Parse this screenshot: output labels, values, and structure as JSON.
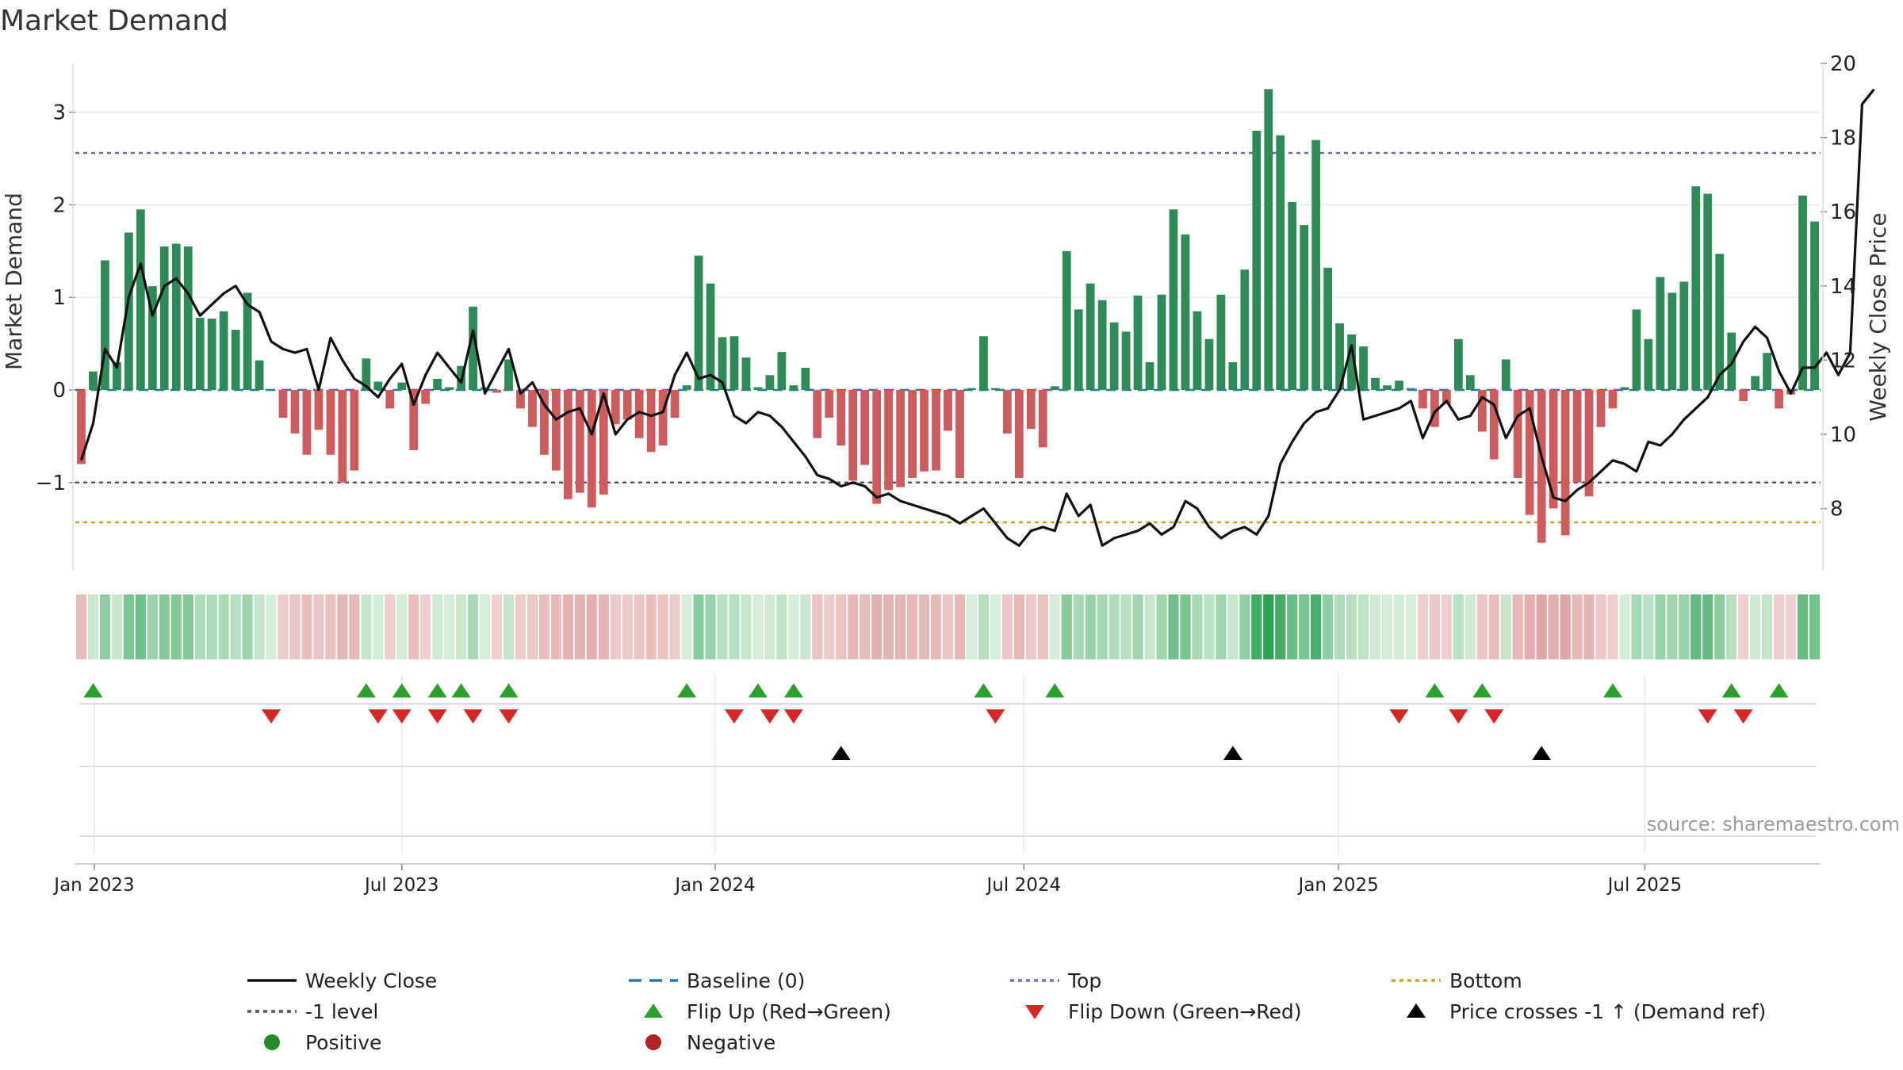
{
  "title": "Market Demand",
  "source": "source: sharemaestro.com",
  "chart_data": {
    "type": "bar",
    "title": "Market Demand",
    "ylabel_left": "Market Demand",
    "ylabel_right": "Weekly Close Price",
    "ylim_left": [
      -2.0,
      3.5
    ],
    "ylim_right": [
      6.5,
      20.0
    ],
    "left_ticks": [
      {
        "v": 3,
        "label": "3"
      },
      {
        "v": 2,
        "label": "2"
      },
      {
        "v": 1,
        "label": "1"
      },
      {
        "v": 0,
        "label": "0"
      },
      {
        "v": -1,
        "label": "−1"
      }
    ],
    "right_ticks": [
      {
        "v": 20,
        "label": "20"
      },
      {
        "v": 18,
        "label": "18"
      },
      {
        "v": 16,
        "label": "16"
      },
      {
        "v": 14,
        "label": "14"
      },
      {
        "v": 12,
        "label": "12"
      },
      {
        "v": 10,
        "label": "10"
      },
      {
        "v": 8,
        "label": "8"
      }
    ],
    "x_start": "2022-12-19",
    "x_week_count": 145,
    "x_ticks": [
      {
        "week": 1.6,
        "label": "Jan 2023"
      },
      {
        "week": 27.5,
        "label": "Jul 2023"
      },
      {
        "week": 53.9,
        "label": "Jan 2024"
      },
      {
        "week": 79.9,
        "label": "Jul 2024"
      },
      {
        "week": 106.4,
        "label": "Jan 2025"
      },
      {
        "week": 132.2,
        "label": "Jul 2025"
      }
    ],
    "reference_lines": {
      "baseline": 0,
      "top": 2.56,
      "minus_one": -1,
      "bottom": -1.43
    },
    "demand": [
      -0.8,
      0.2,
      1.4,
      0.3,
      1.7,
      1.95,
      1.12,
      1.55,
      1.58,
      1.55,
      0.78,
      0.77,
      0.85,
      0.65,
      1.05,
      0.32,
      0,
      -0.3,
      -0.47,
      -0.7,
      -0.43,
      -0.7,
      -1.0,
      -0.87,
      0.34,
      0.09,
      -0.2,
      0.08,
      -0.65,
      -0.15,
      0.12,
      0.03,
      0.26,
      0.9,
      0.03,
      -0.03,
      0.33,
      -0.2,
      -0.4,
      -0.7,
      -0.87,
      -1.18,
      -1.11,
      -1.27,
      -1.13,
      -0.37,
      -0.32,
      -0.52,
      -0.67,
      -0.6,
      -0.3,
      0.05,
      1.45,
      1.15,
      0.57,
      0.58,
      0.35,
      0.03,
      0.16,
      0.41,
      0.05,
      0.24,
      -0.52,
      -0.3,
      -0.6,
      -0.98,
      -0.81,
      -1.23,
      -1.08,
      -1.05,
      -0.95,
      -0.88,
      -0.87,
      -0.44,
      -0.95,
      0.02,
      0.58,
      0.02,
      -0.47,
      -0.95,
      -0.42,
      -0.62,
      0.04,
      1.5,
      0.87,
      1.15,
      0.97,
      0.73,
      0.63,
      1.02,
      0.3,
      1.03,
      1.95,
      1.68,
      0.85,
      0.55,
      1.03,
      0.3,
      1.3,
      2.8,
      3.25,
      2.75,
      2.03,
      1.78,
      2.7,
      1.32,
      0.72,
      0.6,
      0.47,
      0.13,
      0.05,
      0.1,
      0.02,
      -0.2,
      -0.4,
      -0.15,
      0.55,
      0.16,
      -0.45,
      -0.75,
      0.33,
      -0.95,
      -1.35,
      -1.65,
      -1.28,
      -1.57,
      -1.0,
      -1.15,
      -0.4,
      -0.2,
      0.03,
      0.87,
      0.55,
      1.22,
      1.05,
      1.17,
      2.2,
      2.12,
      1.47,
      0.62,
      -0.12,
      0.15,
      0.4,
      -0.2,
      -0.05,
      2.1,
      1.82
    ],
    "price": [
      9.3,
      10.3,
      12.3,
      11.8,
      13.7,
      14.6,
      13.2,
      14.0,
      14.2,
      13.8,
      13.2,
      13.5,
      13.8,
      14.0,
      13.5,
      13.3,
      12.5,
      12.3,
      12.2,
      12.3,
      11.2,
      12.6,
      12.0,
      11.5,
      11.3,
      11.0,
      11.5,
      11.9,
      10.8,
      11.6,
      12.2,
      11.8,
      11.4,
      12.8,
      11.1,
      11.7,
      12.3,
      11.1,
      11.4,
      10.8,
      10.4,
      10.6,
      10.7,
      10.0,
      11.1,
      10.0,
      10.4,
      10.6,
      10.5,
      10.6,
      11.6,
      12.2,
      11.5,
      11.6,
      11.4,
      10.5,
      10.3,
      10.6,
      10.5,
      10.2,
      9.8,
      9.4,
      8.9,
      8.8,
      8.6,
      8.7,
      8.6,
      8.3,
      8.4,
      8.2,
      8.1,
      8.0,
      7.9,
      7.8,
      7.6,
      7.8,
      8.0,
      7.6,
      7.2,
      7.0,
      7.4,
      7.5,
      7.4,
      8.4,
      7.8,
      8.1,
      7.0,
      7.2,
      7.3,
      7.4,
      7.6,
      7.3,
      7.5,
      8.2,
      8.0,
      7.5,
      7.2,
      7.4,
      7.5,
      7.3,
      7.8,
      9.2,
      9.8,
      10.3,
      10.6,
      10.7,
      11.2,
      12.4,
      10.4,
      10.5,
      10.6,
      10.7,
      10.9,
      9.9,
      10.6,
      10.9,
      10.4,
      10.5,
      11.0,
      10.8,
      9.9,
      10.5,
      10.7,
      9.4,
      8.3,
      8.2,
      8.5,
      8.7,
      9.0,
      9.3,
      9.2,
      9.0,
      9.8,
      9.7,
      10.0,
      10.4,
      10.7,
      11.0,
      11.6,
      11.9,
      12.5,
      12.9,
      12.6,
      11.7,
      11.1,
      11.8,
      11.8,
      12.2,
      11.6,
      12.2,
      18.9,
      19.3
    ],
    "flip_up_weeks": [
      1,
      24,
      27,
      30,
      32,
      36,
      51,
      57,
      60,
      76,
      82,
      114,
      118,
      129,
      139,
      143
    ],
    "flip_down_weeks": [
      16,
      25,
      27,
      30,
      33,
      36,
      55,
      58,
      60,
      77,
      111,
      116,
      119,
      137,
      140
    ],
    "price_cross_weeks": [
      64,
      97,
      123
    ]
  },
  "legend": [
    {
      "key": "weekly_close",
      "label": "Weekly Close",
      "kind": "line",
      "color": "#111111"
    },
    {
      "key": "baseline",
      "label": "Baseline (0)",
      "kind": "dashed",
      "color": "#1f77b4"
    },
    {
      "key": "top",
      "label": "Top",
      "kind": "dotted",
      "color": "#7a6fbf"
    },
    {
      "key": "bottom",
      "label": "Bottom",
      "kind": "dotted",
      "color": "#d4a017"
    },
    {
      "key": "minus_one",
      "label": "-1 level",
      "kind": "dotted",
      "color": "#4a5568"
    },
    {
      "key": "flip_up",
      "label": "Flip Up (Red→Green)",
      "kind": "tri-up",
      "color": "#2ca02c"
    },
    {
      "key": "flip_down",
      "label": "Flip Down (Green→Red)",
      "kind": "tri-down",
      "color": "#d62728"
    },
    {
      "key": "price_cross",
      "label": "Price crosses -1 ↑ (Demand ref)",
      "kind": "tri-up",
      "color": "#000000"
    },
    {
      "key": "positive",
      "label": "Positive",
      "kind": "dot",
      "color": "#228b22"
    },
    {
      "key": "negative",
      "label": "Negative",
      "kind": "dot",
      "color": "#b22222"
    }
  ],
  "colors": {
    "positive_bar": "#2e8b57",
    "negative_bar": "#cd5c5c",
    "price_line": "#111111",
    "baseline": "#1f77b4",
    "top": "#6b6b9a",
    "minus_one": "#4a5568",
    "bottom": "#d4a017",
    "flip_up": "#2ca02c",
    "flip_down": "#d62728",
    "price_cross": "#000000",
    "grid": "#e6e6e6"
  }
}
